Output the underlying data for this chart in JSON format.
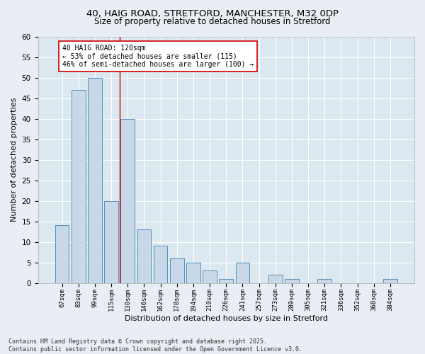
{
  "title1": "40, HAIG ROAD, STRETFORD, MANCHESTER, M32 0DP",
  "title2": "Size of property relative to detached houses in Stretford",
  "xlabel": "Distribution of detached houses by size in Stretford",
  "ylabel": "Number of detached properties",
  "categories": [
    "67sqm",
    "83sqm",
    "99sqm",
    "115sqm",
    "130sqm",
    "146sqm",
    "162sqm",
    "178sqm",
    "194sqm",
    "210sqm",
    "226sqm",
    "241sqm",
    "257sqm",
    "273sqm",
    "289sqm",
    "305sqm",
    "321sqm",
    "336sqm",
    "352sqm",
    "368sqm",
    "384sqm"
  ],
  "values": [
    14,
    47,
    50,
    20,
    40,
    13,
    9,
    6,
    5,
    3,
    1,
    5,
    0,
    2,
    1,
    0,
    1,
    0,
    0,
    0,
    1
  ],
  "bar_color": "#c8d8e8",
  "bar_edge_color": "#5590bb",
  "vline_x": 3.5,
  "vline_color": "#cc0000",
  "annotation_text": "40 HAIG ROAD: 120sqm\n← 53% of detached houses are smaller (115)\n46% of semi-detached houses are larger (100) →",
  "background_color": "#e8eef4",
  "plot_bg_color": "#dce8f0",
  "grid_color": "#ffffff",
  "footer": "Contains HM Land Registry data © Crown copyright and database right 2025.\nContains public sector information licensed under the Open Government Licence v3.0.",
  "ylim": [
    0,
    60
  ],
  "yticks": [
    0,
    5,
    10,
    15,
    20,
    25,
    30,
    35,
    40,
    45,
    50,
    55,
    60
  ]
}
